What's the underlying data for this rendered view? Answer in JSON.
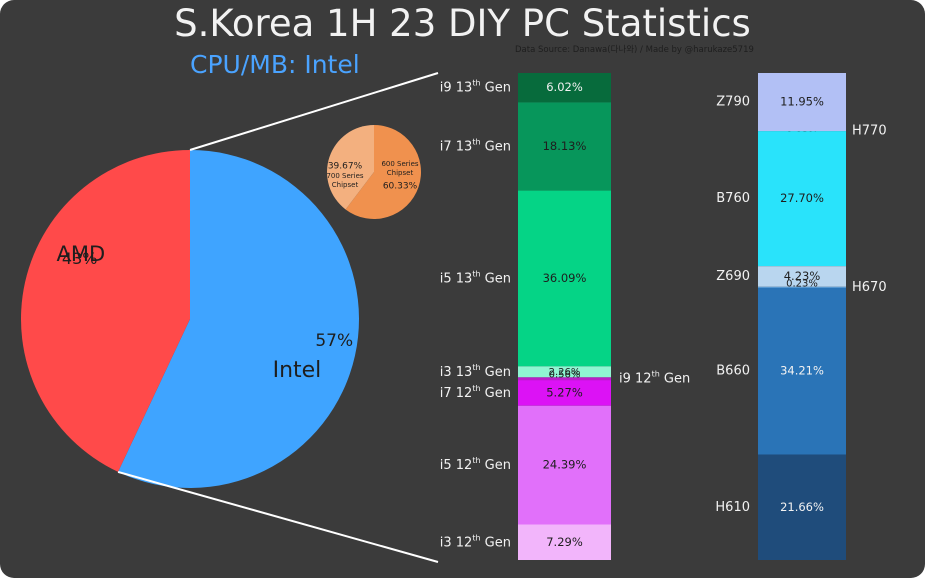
{
  "header": {
    "title": "S.Korea 1H 23 DIY PC Statistics",
    "subtitle": "CPU/MB: Intel",
    "source": "Data Source: Danawa(다나와) / Made by @harukaze5719"
  },
  "colors": {
    "background": "#3b3b3b",
    "subtitle": "#4aa3ff",
    "text": "#f2f2f2",
    "dark_text": "#1e1e1e"
  },
  "chart_data": [
    {
      "type": "pie",
      "chart": "cpu-brand-pie",
      "slices": [
        {
          "label": "Intel",
          "value": 57,
          "value_label": "57%",
          "color": "#3fa4ff"
        },
        {
          "label": "AMD",
          "value": 43,
          "value_label": "43%",
          "color": "#ff4a4a"
        }
      ]
    },
    {
      "type": "pie",
      "chart": "chipset-pie",
      "slices": [
        {
          "label": "600 Series Chipset",
          "label_lines": [
            "600 Series",
            "Chipset"
          ],
          "value": 60.33,
          "value_label": "60.33%",
          "color": "#f0914e"
        },
        {
          "label": "700 Series Chipset",
          "label_lines": [
            "700 Series",
            "Chipset"
          ],
          "value": 39.67,
          "value_label": "39.67%",
          "color": "#f3b07f"
        }
      ]
    },
    {
      "type": "bar",
      "stacked": true,
      "chart": "intel-cpu-generation-stack",
      "segments": [
        {
          "name": "i9 13th Gen",
          "value": 6.02,
          "value_label": "6.02%",
          "color": "#076b3c",
          "label_side": "left"
        },
        {
          "name": "i7 13th Gen",
          "value": 18.13,
          "value_label": "18.13%",
          "color": "#07965b",
          "label_side": "left"
        },
        {
          "name": "i5 13th Gen",
          "value": 36.09,
          "value_label": "36.09%",
          "color": "#05d486",
          "label_side": "left"
        },
        {
          "name": "i3 13th Gen",
          "value": 2.26,
          "value_label": "2.26%",
          "color": "#8ff5d2",
          "label_side": "left"
        },
        {
          "name": "i9 12th Gen",
          "value": 0.56,
          "value_label": "0.56%",
          "color": "#b91ec8",
          "label_side": "right"
        },
        {
          "name": "i7 12th Gen",
          "value": 5.27,
          "value_label": "5.27%",
          "color": "#dc12f5",
          "label_side": "left"
        },
        {
          "name": "i5 12th Gen",
          "value": 24.39,
          "value_label": "24.39%",
          "color": "#e170fa",
          "label_side": "left"
        },
        {
          "name": "i3 12th Gen",
          "value": 7.29,
          "value_label": "7.29%",
          "color": "#f2b5fb",
          "label_side": "left"
        }
      ]
    },
    {
      "type": "bar",
      "stacked": true,
      "chart": "intel-chipset-stack",
      "segments": [
        {
          "name": "Z790",
          "value": 11.95,
          "value_label": "11.95%",
          "color": "#b2c0f5",
          "label_side": "left"
        },
        {
          "name": "H770",
          "value": 0.02,
          "value_label": "0.02%",
          "color": "#29e3fb",
          "label_side": "right"
        },
        {
          "name": "B760",
          "value": 27.7,
          "value_label": "27.70%",
          "color": "#29e3fb",
          "label_side": "left"
        },
        {
          "name": "Z690",
          "value": 4.23,
          "value_label": "4.23%",
          "color": "#b9d6ef",
          "label_side": "left"
        },
        {
          "name": "H670",
          "value": 0.23,
          "value_label": "0.23%",
          "color": "#5ea3e0",
          "label_side": "right"
        },
        {
          "name": "B660",
          "value": 34.21,
          "value_label": "34.21%",
          "color": "#2a74b7",
          "label_side": "left"
        },
        {
          "name": "H610",
          "value": 21.66,
          "value_label": "21.66%",
          "color": "#1f4c7b",
          "label_side": "left"
        }
      ]
    }
  ]
}
